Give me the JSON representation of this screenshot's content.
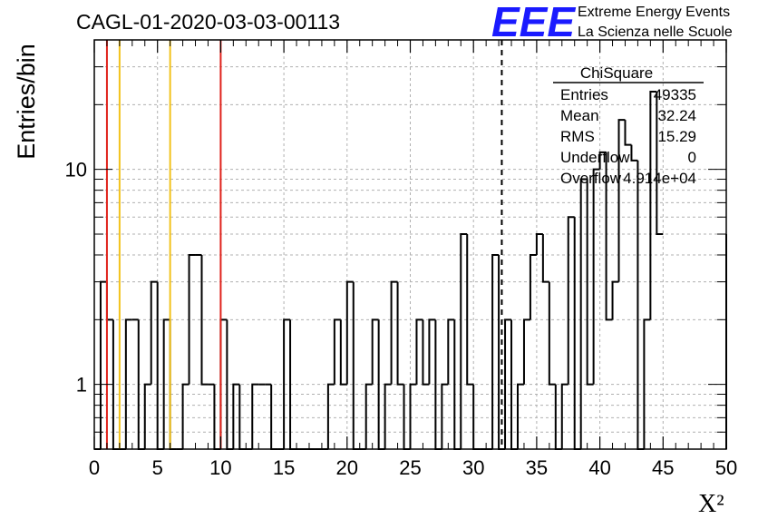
{
  "chart_data": {
    "type": "histogram",
    "title": "CAGL-01-2020-03-03-00113",
    "xlabel": "X²",
    "ylabel": "Entries/bin",
    "xlim": [
      0,
      50
    ],
    "ylim": [
      0.5,
      40
    ],
    "y_scale": "log",
    "grid": true,
    "bin_width": 0.5,
    "x_ticks": [
      "0",
      "5",
      "10",
      "15",
      "20",
      "25",
      "30",
      "35",
      "40",
      "45",
      "50"
    ],
    "y_ticks": [
      "1",
      "10"
    ],
    "values": [
      0,
      3,
      2,
      0,
      0,
      2,
      2,
      0,
      1,
      3,
      0,
      2,
      0,
      0,
      1,
      4,
      4,
      1,
      1,
      0,
      2,
      0,
      1,
      0,
      0,
      1,
      1,
      1,
      0,
      0,
      2,
      0,
      0,
      0,
      0,
      0,
      0,
      1,
      2,
      1,
      3,
      0,
      0,
      1,
      2,
      0,
      1,
      3,
      1,
      0,
      1,
      2,
      1,
      2,
      0,
      1,
      2,
      0,
      5,
      1,
      0,
      0,
      0,
      4,
      0,
      2,
      0,
      1,
      2,
      4,
      5,
      3,
      1,
      0,
      1,
      6,
      0,
      9,
      1,
      10,
      12,
      2,
      3,
      17,
      13,
      11,
      0,
      2,
      23,
      5
    ],
    "vlines": [
      {
        "x": 1,
        "color": "#e0221b",
        "style": "solid"
      },
      {
        "x": 2,
        "color": "#f2c21b",
        "style": "solid"
      },
      {
        "x": 6,
        "color": "#f2c21b",
        "style": "solid"
      },
      {
        "x": 10,
        "color": "#e0221b",
        "style": "solid"
      },
      {
        "x": 32.24,
        "color": "#000000",
        "style": "dashed"
      }
    ],
    "stats_box": {
      "title": "ChiSquare",
      "rows": [
        {
          "label": "Entries",
          "value": "49335"
        },
        {
          "label": "Mean",
          "value": "32.24"
        },
        {
          "label": "RMS",
          "value": "15.29"
        },
        {
          "label": "Underflow",
          "value": "0"
        },
        {
          "label": "Overflow",
          "value": "4.914e+04"
        }
      ]
    }
  },
  "logo": {
    "text": "EEE",
    "line1": "Extreme Energy Events",
    "line2": "La Scienza nelle Scuole",
    "color": "#1a1aff"
  }
}
